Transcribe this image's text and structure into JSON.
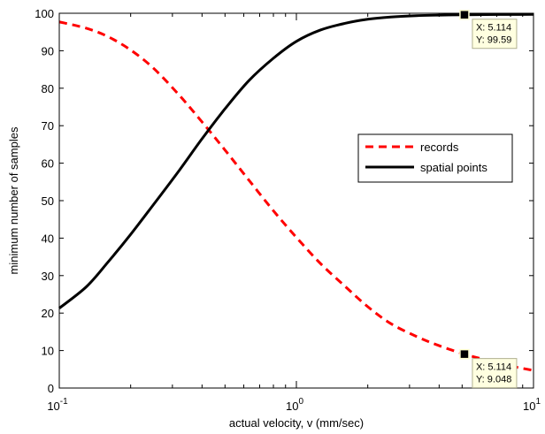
{
  "chart_data": {
    "type": "line",
    "xlabel": "actual velocity, v (mm/sec)",
    "ylabel": "minimum number of samples",
    "xscale": "log",
    "xlim": [
      0.1,
      10
    ],
    "ylim": [
      0,
      100
    ],
    "yticks": [
      0,
      10,
      20,
      30,
      40,
      50,
      60,
      70,
      80,
      90,
      100
    ],
    "xticks": [
      {
        "value": 0.1,
        "base": "10",
        "exp": "-1"
      },
      {
        "value": 1,
        "base": "10",
        "exp": "0"
      },
      {
        "value": 10,
        "base": "10",
        "exp": "1"
      }
    ],
    "grid": false,
    "legend_position": "center-right",
    "series": [
      {
        "name": "records",
        "color": "#ff0000",
        "dash": "dashed",
        "x": [
          0.1,
          0.13,
          0.16,
          0.2,
          0.25,
          0.32,
          0.4,
          0.5,
          0.63,
          0.8,
          1.0,
          1.26,
          1.6,
          2.0,
          2.5,
          3.2,
          4.0,
          5.114,
          6.3,
          8.0,
          10.0
        ],
        "y": [
          97.7,
          96.0,
          93.8,
          90.2,
          85.3,
          78.2,
          71.0,
          63.5,
          55.5,
          47.3,
          40.2,
          33.3,
          27.2,
          21.7,
          17.2,
          13.8,
          11.3,
          9.048,
          7.5,
          5.9,
          4.7
        ]
      },
      {
        "name": "spatial points",
        "color": "#000000",
        "dash": "solid",
        "x": [
          0.1,
          0.13,
          0.16,
          0.2,
          0.25,
          0.32,
          0.4,
          0.5,
          0.63,
          0.8,
          1.0,
          1.26,
          1.6,
          2.0,
          2.5,
          3.2,
          4.0,
          5.114,
          6.3,
          8.0,
          10.0
        ],
        "y": [
          21.3,
          27.0,
          33.5,
          41.0,
          49.0,
          58.0,
          66.5,
          74.5,
          82.0,
          88.0,
          92.5,
          95.5,
          97.3,
          98.4,
          99.0,
          99.35,
          99.5,
          99.59,
          99.64,
          99.68,
          99.7
        ]
      }
    ],
    "datatips": [
      {
        "series": "spatial points",
        "x_text": "X: 5.114",
        "y_text": "Y: 99.59",
        "x": 5.114,
        "y": 99.59
      },
      {
        "series": "records",
        "x_text": "X: 5.114",
        "y_text": "Y: 9.048",
        "x": 5.114,
        "y": 9.048
      }
    ]
  }
}
